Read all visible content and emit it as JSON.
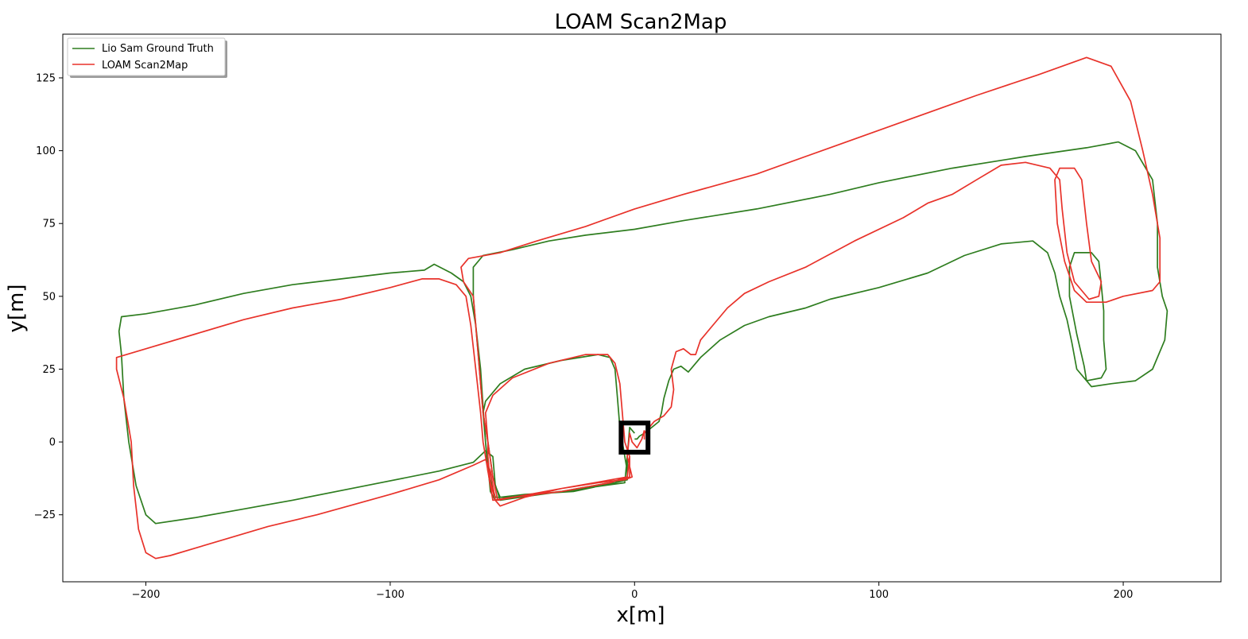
{
  "chart_data": {
    "type": "line",
    "title": "LOAM Scan2Map",
    "xlabel": "x[m]",
    "ylabel": "y[m]",
    "xlim": [
      -234,
      240
    ],
    "ylim": [
      -48,
      140
    ],
    "x_ticks": [
      -200,
      -100,
      0,
      100,
      200
    ],
    "y_ticks": [
      -25,
      0,
      25,
      50,
      75,
      100,
      125
    ],
    "x_tick_labels": [
      "−200",
      "−100",
      "0",
      "100",
      "200"
    ],
    "y_tick_labels": [
      "−25",
      "0",
      "25",
      "50",
      "75",
      "100",
      "125"
    ],
    "grid": false,
    "legend_position": "top-left",
    "marker_box": {
      "x0": -5.5,
      "x1": 5.5,
      "y0": -3.5,
      "y1": 6.5
    },
    "series": [
      {
        "name": "Lio Sam Ground Truth",
        "color": "#2e7d1f",
        "points": [
          [
            0,
            3
          ],
          [
            -2,
            5
          ],
          [
            -3,
            -5
          ],
          [
            -3,
            -12
          ],
          [
            -8,
            -14
          ],
          [
            -20,
            -16
          ],
          [
            -30,
            -17
          ],
          [
            -40,
            -18
          ],
          [
            -50,
            -19
          ],
          [
            -57,
            -20
          ],
          [
            -59,
            -17
          ],
          [
            -60,
            -8
          ],
          [
            -61,
            0
          ],
          [
            -62,
            10
          ],
          [
            -61,
            14
          ],
          [
            -55,
            20
          ],
          [
            -45,
            25
          ],
          [
            -30,
            28
          ],
          [
            -15,
            30
          ],
          [
            -10,
            29
          ],
          [
            -8,
            25
          ],
          [
            -7,
            15
          ],
          [
            -6,
            5
          ],
          [
            -5,
            0
          ],
          [
            -3,
            -10
          ],
          [
            -3,
            -13
          ],
          [
            -8,
            -14
          ],
          [
            -25,
            -17
          ],
          [
            -45,
            -18
          ],
          [
            -55,
            -19
          ],
          [
            -57,
            -15
          ],
          [
            -58,
            -5
          ],
          [
            -61,
            -3
          ],
          [
            -66,
            -7
          ],
          [
            -80,
            -10
          ],
          [
            -110,
            -15
          ],
          [
            -140,
            -20
          ],
          [
            -160,
            -23
          ],
          [
            -180,
            -26
          ],
          [
            -196,
            -28
          ],
          [
            -200,
            -25
          ],
          [
            -204,
            -15
          ],
          [
            -207,
            0
          ],
          [
            -209,
            15
          ],
          [
            -210,
            30
          ],
          [
            -211,
            38
          ],
          [
            -210,
            43
          ],
          [
            -200,
            44
          ],
          [
            -180,
            47
          ],
          [
            -160,
            51
          ],
          [
            -140,
            54
          ],
          [
            -120,
            56
          ],
          [
            -100,
            58
          ],
          [
            -86,
            59
          ],
          [
            -82,
            61
          ],
          [
            -75,
            58
          ],
          [
            -70,
            55
          ],
          [
            -67,
            50
          ],
          [
            -65,
            40
          ],
          [
            -63,
            25
          ],
          [
            -62,
            12
          ],
          [
            -61,
            0
          ],
          [
            -60,
            -10
          ],
          [
            -57,
            -19
          ],
          [
            -50,
            -19
          ],
          [
            -30,
            -17
          ],
          [
            -10,
            -14
          ],
          [
            -3,
            -12
          ],
          [
            -3,
            -5
          ],
          [
            -4,
            -14
          ],
          [
            -30,
            -17
          ],
          [
            -55,
            -20
          ],
          [
            -58,
            -12
          ],
          [
            -60,
            0
          ],
          [
            -62,
            10
          ],
          [
            -63,
            20
          ],
          [
            -64,
            30
          ],
          [
            -65,
            40
          ],
          [
            -66,
            50
          ],
          [
            -66,
            60
          ],
          [
            -62,
            64
          ],
          [
            -50,
            66
          ],
          [
            -35,
            69
          ],
          [
            -20,
            71
          ],
          [
            0,
            73
          ],
          [
            20,
            76
          ],
          [
            50,
            80
          ],
          [
            80,
            85
          ],
          [
            100,
            89
          ],
          [
            130,
            94
          ],
          [
            160,
            98
          ],
          [
            185,
            101
          ],
          [
            198,
            103
          ],
          [
            205,
            100
          ],
          [
            212,
            90
          ],
          [
            214,
            75
          ],
          [
            214,
            60
          ],
          [
            216,
            50
          ],
          [
            218,
            45
          ],
          [
            217,
            35
          ],
          [
            212,
            25
          ],
          [
            205,
            21
          ],
          [
            195,
            20
          ],
          [
            187,
            19
          ],
          [
            185,
            21
          ],
          [
            184,
            26
          ],
          [
            181,
            37
          ],
          [
            178,
            50
          ],
          [
            178,
            60
          ],
          [
            180,
            65
          ],
          [
            187,
            65
          ],
          [
            190,
            62
          ],
          [
            191,
            54
          ],
          [
            192,
            45
          ],
          [
            192,
            35
          ],
          [
            193,
            25
          ],
          [
            191,
            22
          ],
          [
            185,
            21
          ],
          [
            181,
            25
          ],
          [
            179,
            34
          ],
          [
            177,
            42
          ],
          [
            174,
            50
          ],
          [
            172,
            58
          ],
          [
            169,
            65
          ],
          [
            163,
            69
          ],
          [
            150,
            68
          ],
          [
            135,
            64
          ],
          [
            120,
            58
          ],
          [
            100,
            53
          ],
          [
            80,
            49
          ],
          [
            70,
            46
          ],
          [
            55,
            43
          ],
          [
            45,
            40
          ],
          [
            35,
            35
          ],
          [
            27,
            29
          ],
          [
            22,
            24
          ],
          [
            19,
            26
          ],
          [
            16,
            25
          ],
          [
            14,
            21
          ],
          [
            12,
            15
          ],
          [
            11,
            10
          ],
          [
            10,
            7
          ],
          [
            7,
            5
          ],
          [
            4,
            3
          ],
          [
            2,
            2
          ],
          [
            1,
            1
          ],
          [
            0,
            1
          ]
        ]
      },
      {
        "name": "LOAM Scan2Map",
        "color": "#e8322a",
        "points": [
          [
            4,
            4
          ],
          [
            3,
            1
          ],
          [
            1,
            -2
          ],
          [
            -1,
            0
          ],
          [
            -2,
            3
          ],
          [
            -3,
            -5
          ],
          [
            -1,
            -12
          ],
          [
            -4,
            -13
          ],
          [
            -15,
            -14
          ],
          [
            -30,
            -16
          ],
          [
            -45,
            -19
          ],
          [
            -55,
            -22
          ],
          [
            -57,
            -20
          ],
          [
            -59,
            -14
          ],
          [
            -60,
            -5
          ],
          [
            -60,
            0
          ],
          [
            -61,
            10
          ],
          [
            -58,
            16
          ],
          [
            -50,
            22
          ],
          [
            -35,
            27
          ],
          [
            -20,
            30
          ],
          [
            -11,
            30
          ],
          [
            -8,
            27
          ],
          [
            -6,
            20
          ],
          [
            -5,
            10
          ],
          [
            -4,
            0
          ],
          [
            -2,
            -5
          ],
          [
            -2,
            -12
          ],
          [
            -5,
            -13
          ],
          [
            -15,
            -14
          ],
          [
            -30,
            -16
          ],
          [
            -45,
            -19
          ],
          [
            -55,
            -22
          ],
          [
            -57,
            -20
          ],
          [
            -59,
            -10
          ],
          [
            -61,
            -6
          ],
          [
            -66,
            -8
          ],
          [
            -80,
            -13
          ],
          [
            -100,
            -18
          ],
          [
            -130,
            -25
          ],
          [
            -150,
            -29
          ],
          [
            -170,
            -34
          ],
          [
            -190,
            -39
          ],
          [
            -196,
            -40
          ],
          [
            -200,
            -38
          ],
          [
            -203,
            -30
          ],
          [
            -205,
            -15
          ],
          [
            -206,
            0
          ],
          [
            -209,
            15
          ],
          [
            -212,
            25
          ],
          [
            -212,
            29
          ],
          [
            -200,
            32
          ],
          [
            -180,
            37
          ],
          [
            -160,
            42
          ],
          [
            -140,
            46
          ],
          [
            -120,
            49
          ],
          [
            -100,
            53
          ],
          [
            -87,
            56
          ],
          [
            -80,
            56
          ],
          [
            -73,
            54
          ],
          [
            -69,
            50
          ],
          [
            -67,
            40
          ],
          [
            -65,
            25
          ],
          [
            -63,
            10
          ],
          [
            -62,
            0
          ],
          [
            -60,
            -10
          ],
          [
            -58,
            -20
          ],
          [
            -50,
            -19
          ],
          [
            -30,
            -17
          ],
          [
            -10,
            -14
          ],
          [
            -3,
            -12
          ],
          [
            -2,
            -5
          ],
          [
            -3,
            -12
          ],
          [
            -30,
            -16
          ],
          [
            -56,
            -20
          ],
          [
            -58,
            -12
          ],
          [
            -60,
            0
          ],
          [
            -62,
            10
          ],
          [
            -63,
            20
          ],
          [
            -64,
            30
          ],
          [
            -65,
            40
          ],
          [
            -66,
            50
          ],
          [
            -70,
            55
          ],
          [
            -71,
            60
          ],
          [
            -68,
            63
          ],
          [
            -55,
            65
          ],
          [
            -40,
            69
          ],
          [
            -20,
            74
          ],
          [
            0,
            80
          ],
          [
            20,
            85
          ],
          [
            50,
            92
          ],
          [
            80,
            101
          ],
          [
            110,
            110
          ],
          [
            140,
            119
          ],
          [
            165,
            126
          ],
          [
            185,
            132
          ],
          [
            195,
            129
          ],
          [
            203,
            117
          ],
          [
            208,
            100
          ],
          [
            212,
            85
          ],
          [
            215,
            70
          ],
          [
            215,
            55
          ],
          [
            212,
            52
          ],
          [
            200,
            50
          ],
          [
            193,
            48
          ],
          [
            185,
            48
          ],
          [
            180,
            52
          ],
          [
            176,
            62
          ],
          [
            173,
            75
          ],
          [
            172,
            90
          ],
          [
            174,
            94
          ],
          [
            180,
            94
          ],
          [
            183,
            90
          ],
          [
            185,
            75
          ],
          [
            187,
            62
          ],
          [
            191,
            55
          ],
          [
            190,
            50
          ],
          [
            186,
            49
          ],
          [
            180,
            55
          ],
          [
            177,
            65
          ],
          [
            175,
            80
          ],
          [
            174,
            90
          ],
          [
            170,
            94
          ],
          [
            160,
            96
          ],
          [
            150,
            95
          ],
          [
            140,
            90
          ],
          [
            130,
            85
          ],
          [
            120,
            82
          ],
          [
            110,
            77
          ],
          [
            90,
            69
          ],
          [
            70,
            60
          ],
          [
            55,
            55
          ],
          [
            45,
            51
          ],
          [
            38,
            46
          ],
          [
            32,
            40
          ],
          [
            27,
            35
          ],
          [
            25,
            30
          ],
          [
            23,
            30
          ],
          [
            20,
            32
          ],
          [
            17,
            31
          ],
          [
            15,
            25
          ],
          [
            16,
            18
          ],
          [
            15,
            12
          ],
          [
            12,
            9
          ],
          [
            8,
            7
          ],
          [
            6,
            5
          ],
          [
            4,
            3
          ],
          [
            4,
            1
          ],
          [
            4,
            4
          ]
        ]
      }
    ]
  }
}
